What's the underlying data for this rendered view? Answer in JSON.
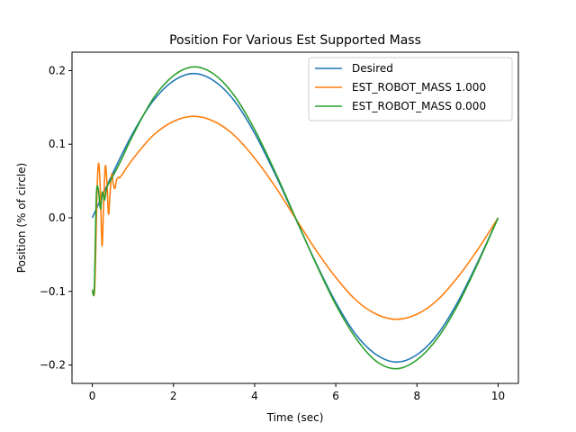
{
  "chart_data": {
    "type": "line",
    "title": "Position For Various Est Supported Mass",
    "xlabel": "Time (sec)",
    "ylabel": "Position (% of circle)",
    "xlim": [
      -0.5,
      10.5
    ],
    "ylim": [
      -0.225,
      0.225
    ],
    "xticks": [
      0,
      2,
      4,
      6,
      8,
      10
    ],
    "xtick_labels": [
      "0",
      "2",
      "4",
      "6",
      "8",
      "10"
    ],
    "yticks": [
      -0.2,
      -0.1,
      0.0,
      0.1,
      0.2
    ],
    "ytick_labels": [
      "−0.2",
      "−0.1",
      "0.0",
      "0.1",
      "0.2"
    ],
    "grid": false,
    "legend_position": "top-right",
    "series": [
      {
        "name": "Desired",
        "color": "#1f77b4",
        "x": [
          0,
          0.5,
          1,
          1.5,
          2,
          2.5,
          3,
          3.5,
          4,
          4.5,
          5,
          5.5,
          6,
          6.5,
          7,
          7.5,
          8,
          8.5,
          9,
          9.5,
          10
        ],
        "y": [
          0,
          0.06,
          0.115,
          0.159,
          0.186,
          0.196,
          0.186,
          0.159,
          0.115,
          0.06,
          0,
          -0.06,
          -0.115,
          -0.159,
          -0.186,
          -0.196,
          -0.186,
          -0.159,
          -0.115,
          -0.06,
          0
        ]
      },
      {
        "name": "EST_ROBOT_MASS 1.000",
        "color": "#ff7f0e",
        "x": [
          0,
          0.06,
          0.12,
          0.16,
          0.2,
          0.24,
          0.28,
          0.32,
          0.36,
          0.4,
          0.44,
          0.48,
          0.52,
          0.56,
          0.6,
          0.65,
          0.7,
          1,
          1.5,
          2,
          2.5,
          3,
          3.5,
          4,
          4.5,
          5,
          5.5,
          6,
          6.5,
          7,
          7.5,
          8,
          8.5,
          9,
          9.5,
          10
        ],
        "y": [
          -0.098,
          -0.095,
          0.04,
          0.074,
          0.035,
          -0.038,
          0.02,
          0.07,
          0.05,
          0.005,
          0.035,
          0.06,
          0.045,
          0.04,
          0.052,
          0.055,
          0.056,
          0.08,
          0.112,
          0.131,
          0.138,
          0.131,
          0.112,
          0.081,
          0.043,
          0,
          -0.043,
          -0.081,
          -0.112,
          -0.131,
          -0.138,
          -0.131,
          -0.112,
          -0.081,
          -0.043,
          0
        ]
      },
      {
        "name": "EST_ROBOT_MASS 0.000",
        "color": "#2ca02c",
        "x": [
          0,
          0.05,
          0.1,
          0.15,
          0.2,
          0.25,
          0.3,
          0.35,
          0.4,
          0.5,
          0.7,
          1,
          1.5,
          2,
          2.5,
          3,
          3.5,
          4,
          4.5,
          5,
          5.5,
          6,
          6.5,
          7,
          7.5,
          8,
          8.5,
          9,
          9.5,
          10
        ],
        "y": [
          -0.098,
          -0.095,
          0.03,
          0.038,
          0.012,
          0.035,
          0.024,
          0.04,
          0.046,
          0.056,
          0.077,
          0.112,
          0.162,
          0.193,
          0.205,
          0.195,
          0.166,
          0.12,
          0.063,
          0.001,
          -0.061,
          -0.118,
          -0.164,
          -0.195,
          -0.205,
          -0.193,
          -0.164,
          -0.119,
          -0.062,
          0
        ]
      }
    ]
  }
}
